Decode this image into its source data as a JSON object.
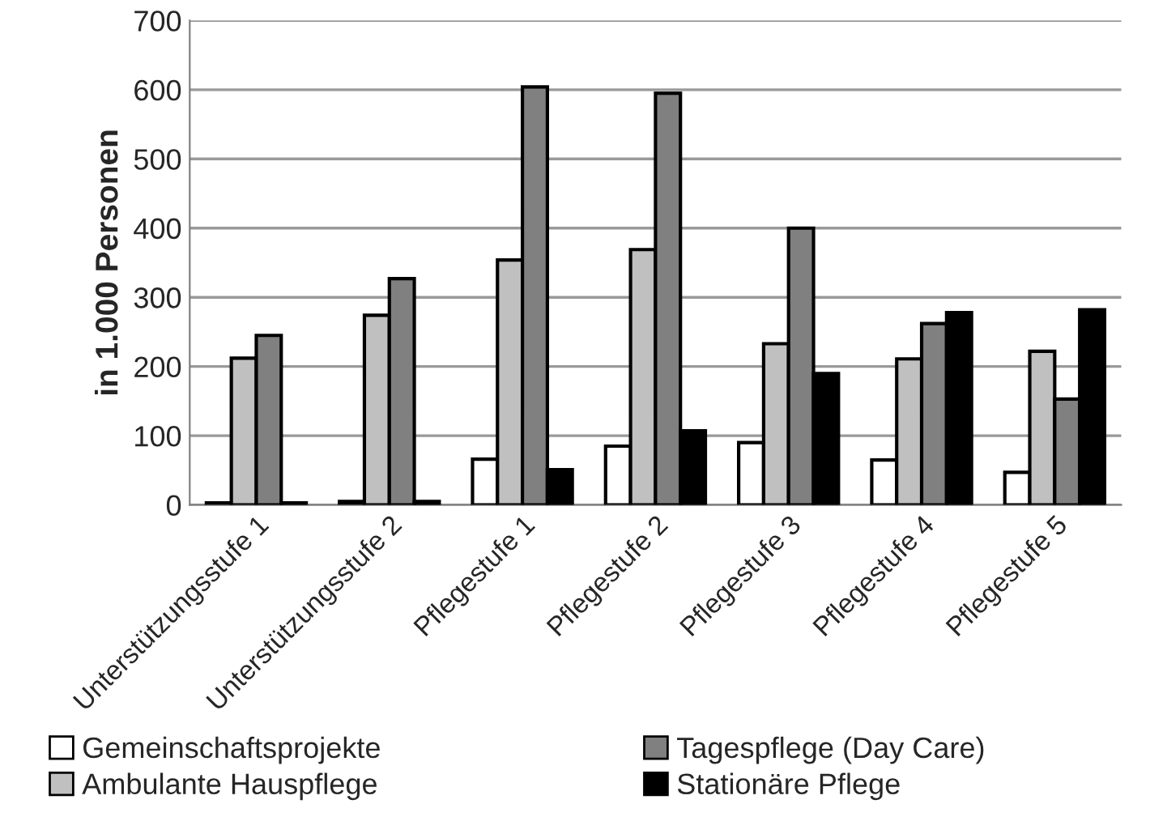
{
  "chart_data": {
    "type": "bar",
    "ylabel": "in 1.000 Personen",
    "categories": [
      "Unterstützungsstufe 1",
      "Unterstützungsstufe 2",
      "Pflegestufe 1",
      "Pflegestufe 2",
      "Pflegestufe 3",
      "Pflegestufe 4",
      "Pflegestufe 5"
    ],
    "series": [
      {
        "name": "Gemeinschaftsprojekte",
        "color": "#ffffff",
        "values": [
          3,
          5,
          66,
          85,
          90,
          65,
          47
        ]
      },
      {
        "name": "Ambulante Hauspflege",
        "color": "#c0c0c0",
        "values": [
          212,
          274,
          354,
          369,
          233,
          211,
          222
        ]
      },
      {
        "name": "Tagespflege (Day Care)",
        "color": "#808080",
        "values": [
          245,
          327,
          604,
          595,
          400,
          262,
          153
        ]
      },
      {
        "name": "Stationäre Pflege",
        "color": "#000000",
        "values": [
          3,
          5,
          51,
          107,
          190,
          278,
          282
        ]
      }
    ],
    "ylim": [
      0,
      700
    ],
    "yticks": [
      0,
      100,
      200,
      300,
      400,
      500,
      600,
      700
    ],
    "grid": "y",
    "legend": "bottom"
  }
}
